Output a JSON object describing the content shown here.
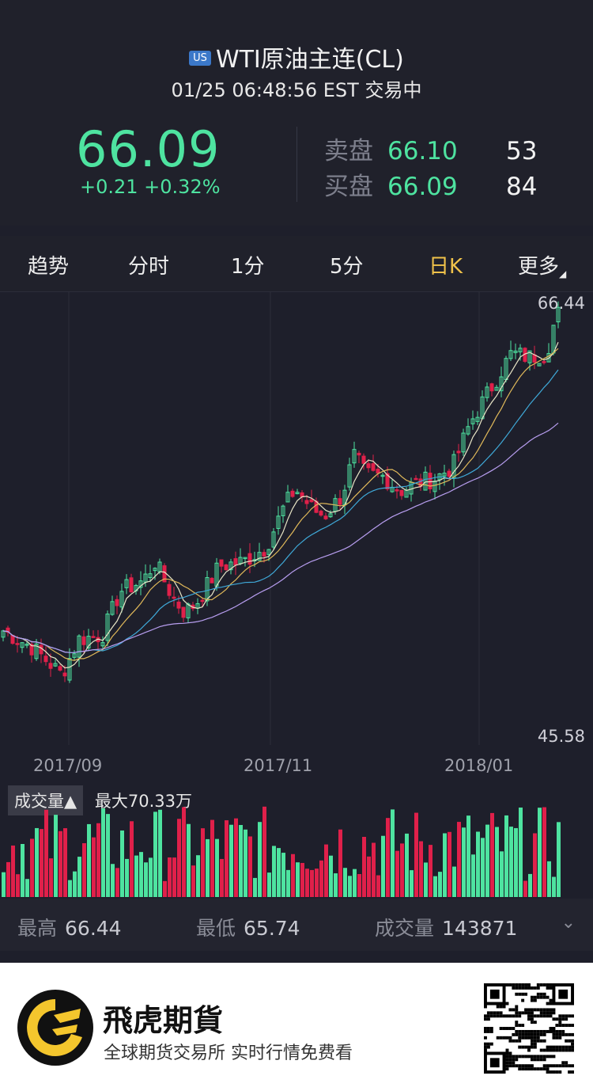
{
  "header": {
    "badge": "US",
    "title": "WTI原油主连(CL)",
    "subtitle": "01/25 06:48:56 EST 交易中",
    "last_price": "66.09",
    "change": "+0.21 +0.32%"
  },
  "orderbook": {
    "ask_label": "卖盘",
    "ask_price": "66.10",
    "ask_size": "53",
    "bid_label": "买盘",
    "bid_price": "66.09",
    "bid_size": "84"
  },
  "tabs": [
    "趋势",
    "分时",
    "1分",
    "5分",
    "日K",
    "更多"
  ],
  "active_tab": "日K",
  "chart": {
    "y_max_label": "66.44",
    "y_min_label": "45.58",
    "x_labels": [
      "2017/09",
      "2017/11",
      "2018/01"
    ]
  },
  "chart_data": {
    "type": "candlestick",
    "ylim": [
      45.58,
      66.44
    ],
    "close_path": [
      [
        0,
        50.6
      ],
      [
        0.05,
        49.8
      ],
      [
        0.1,
        48.5
      ],
      [
        0.13,
        50.2
      ],
      [
        0.17,
        50.4
      ],
      [
        0.2,
        52.5
      ],
      [
        0.24,
        53.0
      ],
      [
        0.26,
        53.9
      ],
      [
        0.29,
        52.2
      ],
      [
        0.31,
        51.5
      ],
      [
        0.33,
        51.9
      ],
      [
        0.37,
        53.7
      ],
      [
        0.41,
        53.9
      ],
      [
        0.45,
        54.6
      ],
      [
        0.48,
        56.5
      ],
      [
        0.5,
        57.4
      ],
      [
        0.53,
        56.4
      ],
      [
        0.55,
        56.1
      ],
      [
        0.58,
        57.1
      ],
      [
        0.6,
        59.0
      ],
      [
        0.62,
        58.1
      ],
      [
        0.65,
        58.0
      ],
      [
        0.68,
        57.3
      ],
      [
        0.71,
        57.7
      ],
      [
        0.74,
        57.9
      ],
      [
        0.77,
        58.5
      ],
      [
        0.8,
        60.6
      ],
      [
        0.83,
        62.0
      ],
      [
        0.87,
        63.9
      ],
      [
        0.9,
        63.7
      ],
      [
        0.93,
        63.9
      ],
      [
        0.95,
        66.09
      ]
    ]
  },
  "volume": {
    "button": "成交量▲",
    "max": "最大70.33万"
  },
  "stats": {
    "high_label": "最高",
    "high": "66.44",
    "low_label": "最低",
    "low": "65.74",
    "vol_label": "成交量",
    "vol": "143871"
  },
  "footer": {
    "brand": "飛虎期貨",
    "tagline": "全球期货交易所 实时行情免费看"
  },
  "colors": {
    "up": "#4ee3a0",
    "down": "#e0204a",
    "active_tab": "#f0c24a"
  }
}
